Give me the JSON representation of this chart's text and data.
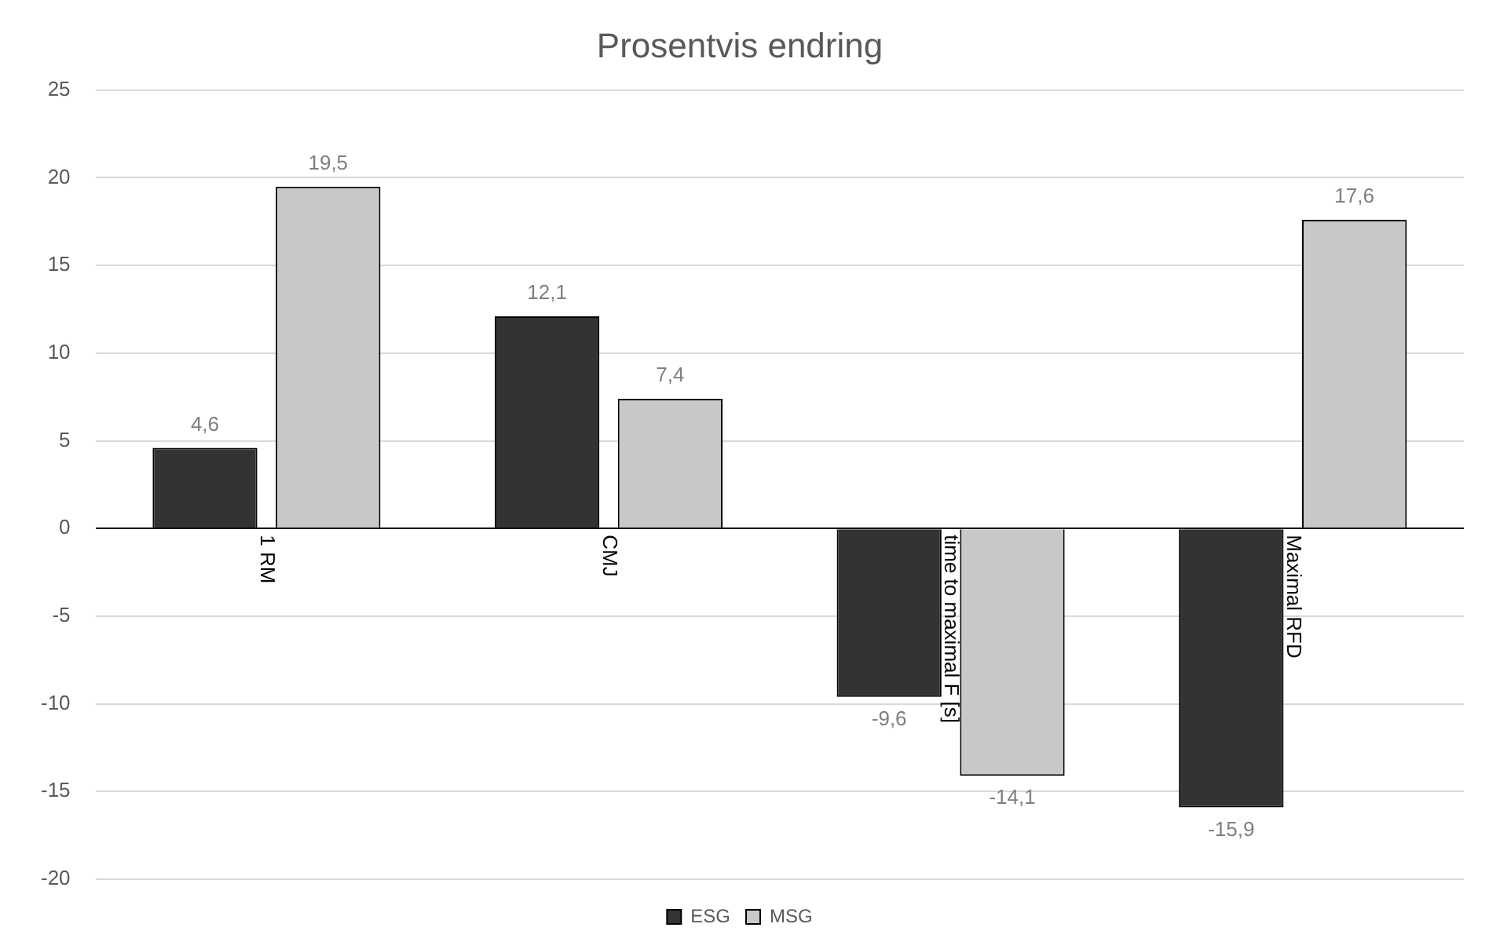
{
  "chart_data": {
    "type": "bar",
    "title": "Prosentvis endring",
    "categories": [
      "1 RM",
      "CMJ",
      "time to maximal F [s]",
      "Maximal RFD"
    ],
    "series": [
      {
        "name": "ESG",
        "color": "#333333",
        "values": [
          4.6,
          12.1,
          -9.6,
          -15.9
        ],
        "value_labels": [
          "4,6",
          "12,1",
          "-9,6",
          "-15,9"
        ]
      },
      {
        "name": "MSG",
        "color": "#c8c8c8",
        "values": [
          19.5,
          7.4,
          -14.1,
          17.6
        ],
        "value_labels": [
          "19,5",
          "7,4",
          "-14,1",
          "17,6"
        ]
      }
    ],
    "ylim": [
      -20,
      25
    ],
    "yticks": [
      -20,
      -15,
      -10,
      -5,
      0,
      5,
      10,
      15,
      20,
      25
    ],
    "grid": "y",
    "legend": "bottom"
  }
}
